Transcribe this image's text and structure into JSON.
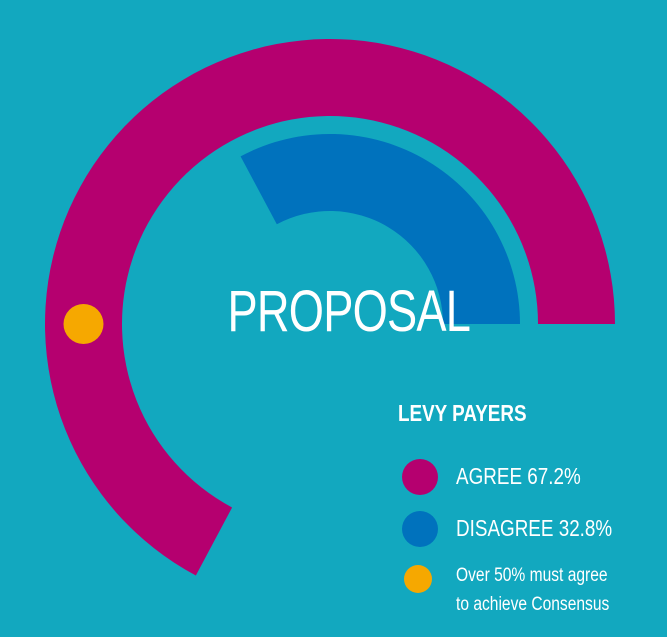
{
  "colors": {
    "background": "#12A8BF",
    "agree": "#B5006F",
    "disagree": "#0072BD",
    "threshold": "#F6A800",
    "text": "#FFFFFF"
  },
  "center_label": "PROPOSAL",
  "legend": {
    "title": "LEVY PAYERS",
    "items": [
      {
        "label": "AGREE 67.2%",
        "color": "#B5006F"
      },
      {
        "label": "DISAGREE 32.8%",
        "color": "#0072BD"
      }
    ],
    "note_line1": "Over 50% must agree",
    "note_line2": "to achieve Consensus",
    "note_color": "#F6A800"
  },
  "chart_data": {
    "type": "radial-bar",
    "series": [
      {
        "name": "AGREE",
        "value": 67.2,
        "color": "#B5006F"
      },
      {
        "name": "DISAGREE",
        "value": 32.8,
        "color": "#0072BD"
      }
    ],
    "unit": "%",
    "max": 100,
    "threshold": 50
  }
}
